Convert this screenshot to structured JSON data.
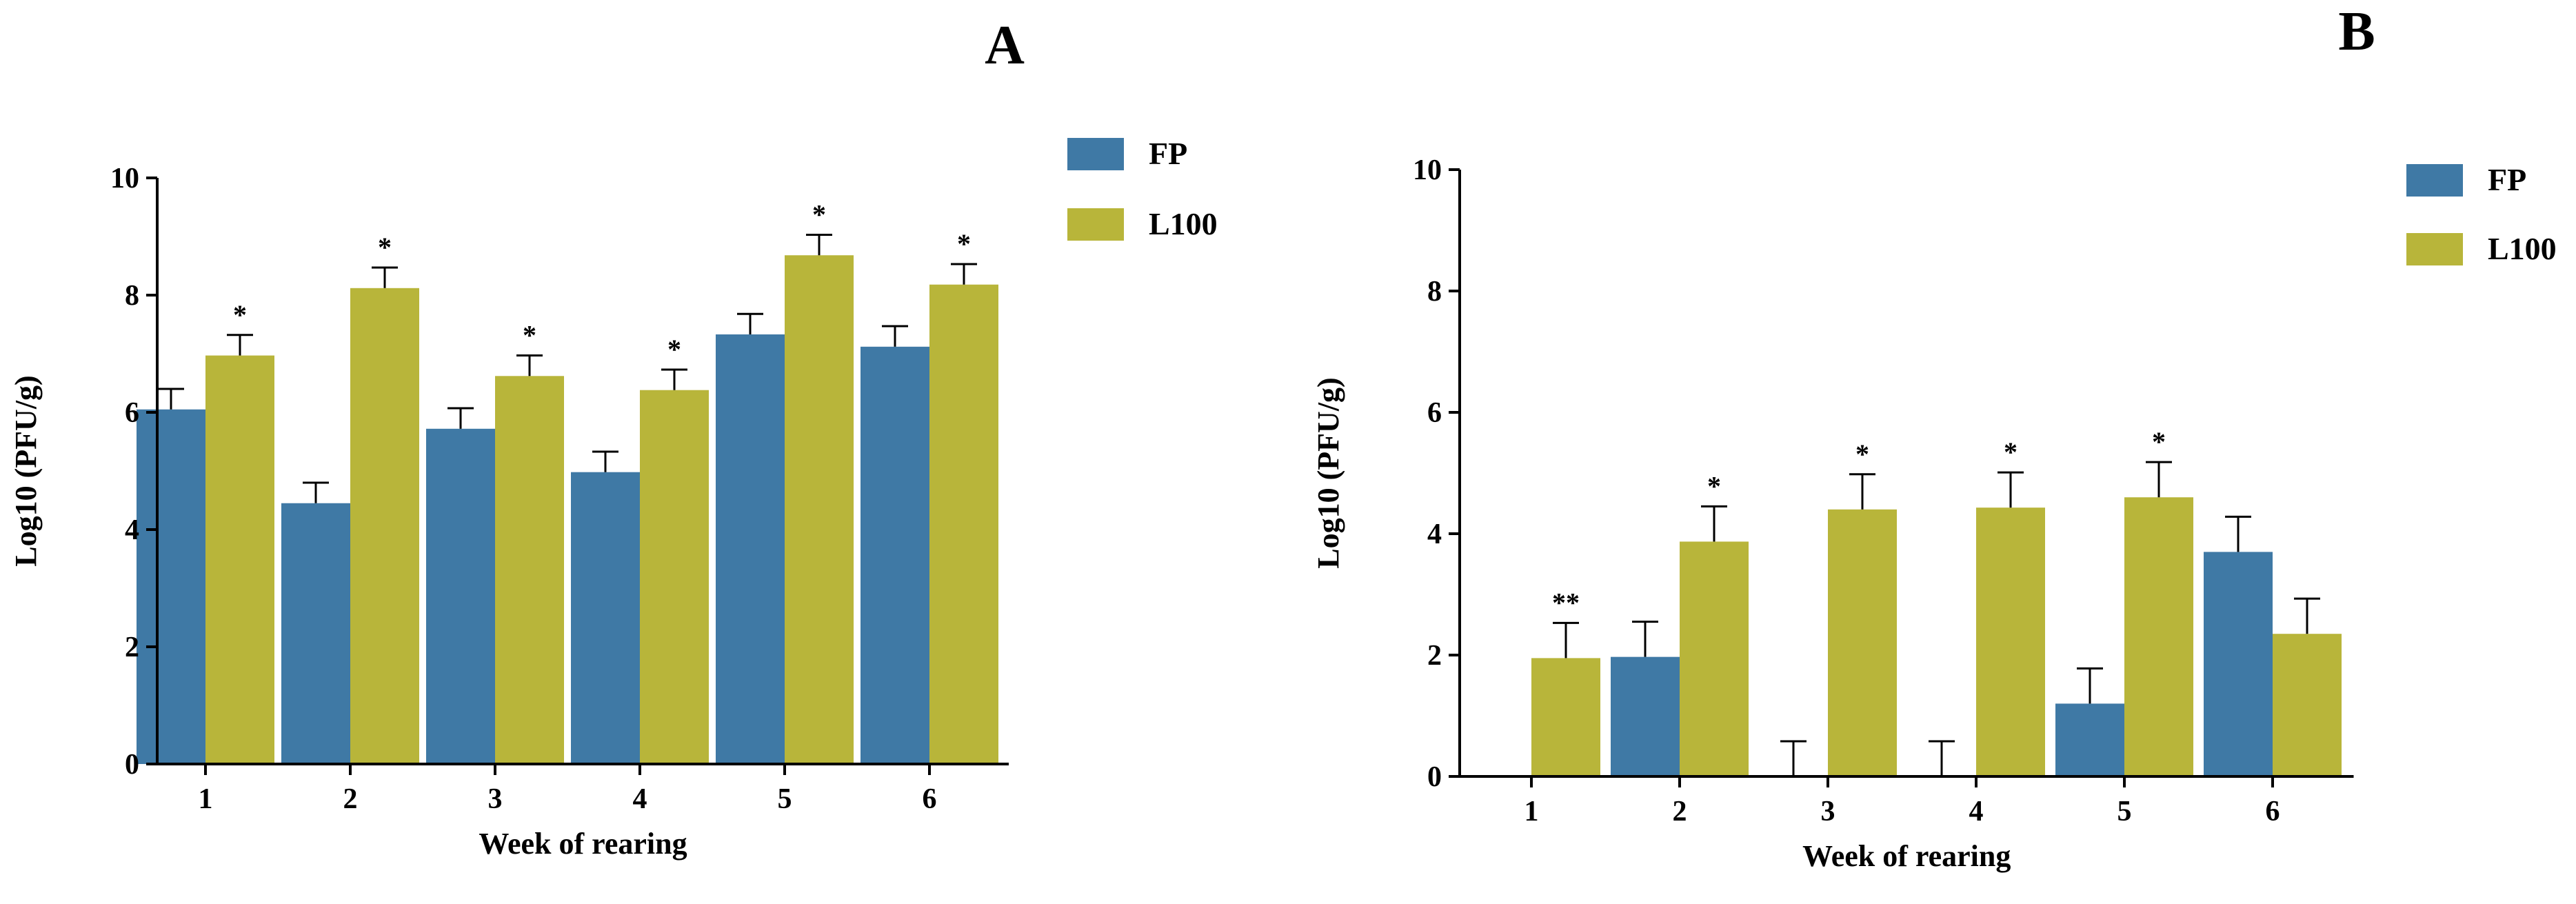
{
  "chart_data": [
    {
      "type": "bar",
      "panel_label": "A",
      "xlabel": "Week of rearing",
      "ylabel": "Log10 (PFU/g)",
      "ylim": [
        0,
        10
      ],
      "yticks": [
        0,
        2,
        4,
        6,
        8,
        10
      ],
      "categories": [
        "1",
        "2",
        "3",
        "4",
        "5",
        "6"
      ],
      "legend_position": "top-right",
      "series": [
        {
          "name": "FP",
          "color": "#3f79a5",
          "values": [
            6.05,
            4.45,
            5.72,
            4.98,
            7.33,
            7.12
          ],
          "errors": [
            0.35,
            0.35,
            0.35,
            0.35,
            0.35,
            0.35
          ],
          "annotations": [
            "",
            "",
            "",
            "",
            "",
            ""
          ]
        },
        {
          "name": "L100",
          "color": "#b8b53a",
          "values": [
            6.97,
            8.12,
            6.62,
            6.38,
            8.68,
            8.18
          ],
          "errors": [
            0.35,
            0.35,
            0.35,
            0.35,
            0.35,
            0.35
          ],
          "annotations": [
            "*",
            "*",
            "*",
            "*",
            "*",
            "*"
          ]
        }
      ]
    },
    {
      "type": "bar",
      "panel_label": "B",
      "xlabel": "Week of rearing",
      "ylabel": "Log10 (PFU/g)",
      "ylim": [
        0,
        10
      ],
      "yticks": [
        0,
        2,
        4,
        6,
        8,
        10
      ],
      "categories": [
        "1",
        "2",
        "3",
        "4",
        "5",
        "6"
      ],
      "legend_position": "top-right",
      "series": [
        {
          "name": "FP",
          "color": "#3f79a5",
          "values": [
            0,
            1.97,
            0,
            0,
            1.2,
            3.7
          ],
          "errors": [
            0,
            0.58,
            0.58,
            0.58,
            0.58,
            0.58
          ],
          "annotations": [
            "",
            "",
            "",
            "",
            "",
            ""
          ]
        },
        {
          "name": "L100",
          "color": "#b8b53a",
          "values": [
            1.95,
            3.87,
            4.4,
            4.43,
            4.6,
            2.35
          ],
          "errors": [
            0.58,
            0.58,
            0.58,
            0.58,
            0.58,
            0.58
          ],
          "annotations": [
            "**",
            "*",
            "*",
            "*",
            "*",
            ""
          ]
        }
      ]
    }
  ]
}
